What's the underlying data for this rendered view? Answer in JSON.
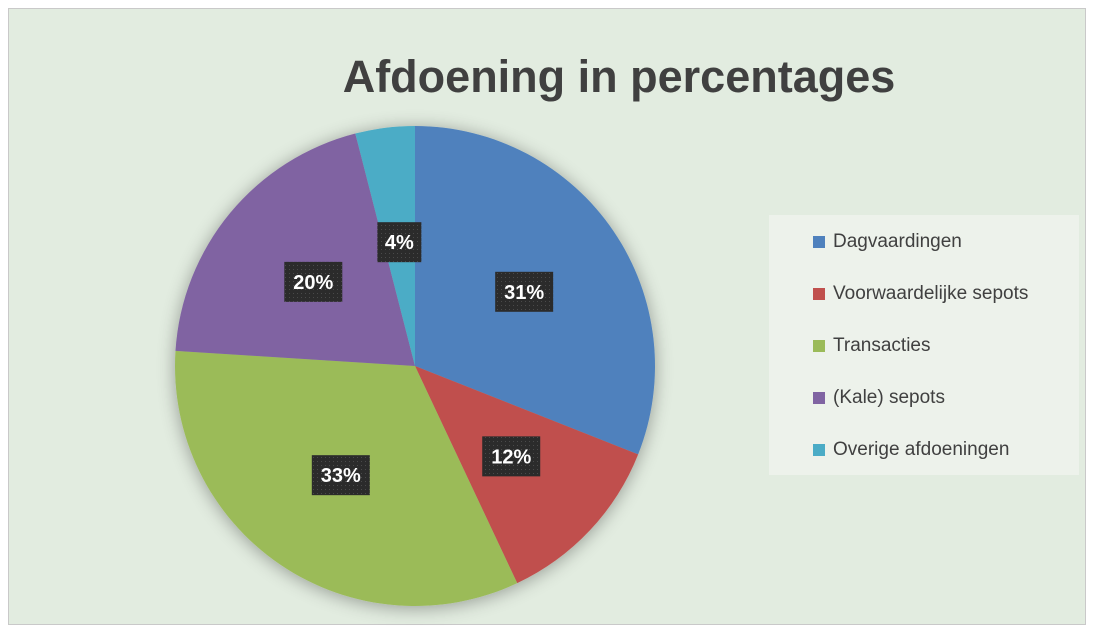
{
  "chart_data": {
    "type": "pie",
    "title": "Afdoening in percentages",
    "legend_position": "right",
    "slices": [
      {
        "label": "Dagvaardingen",
        "value": 31,
        "display": "31%",
        "color": "#4f81bd"
      },
      {
        "label": "Voorwaardelijke sepots",
        "value": 12,
        "display": "12%",
        "color": "#c0504d"
      },
      {
        "label": "Transacties",
        "value": 33,
        "display": "33%",
        "color": "#9bbb59"
      },
      {
        "label": "(Kale) sepots",
        "value": 20,
        "display": "20%",
        "color": "#8064a2"
      },
      {
        "label": "Overige afdoeningen",
        "value": 4,
        "display": "4%",
        "color": "#4bacc6"
      }
    ]
  }
}
